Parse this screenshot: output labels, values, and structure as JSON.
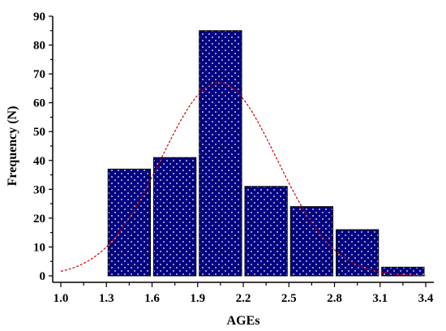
{
  "chart_data": {
    "type": "bar",
    "title": "",
    "xlabel": "AGEs",
    "ylabel": "Frequency (N)",
    "xlim": [
      1.0,
      3.4
    ],
    "ylim": [
      0,
      90
    ],
    "x_ticks": [
      "1.0",
      "1.3",
      "1.6",
      "1.9",
      "2.2",
      "2.5",
      "2.8",
      "3.1",
      "3.4"
    ],
    "x_tick_values": [
      1.0,
      1.3,
      1.6,
      1.9,
      2.2,
      2.5,
      2.8,
      3.1,
      3.4
    ],
    "y_ticks": [
      "0",
      "10",
      "20",
      "30",
      "40",
      "50",
      "60",
      "70",
      "80",
      "90"
    ],
    "y_tick_values": [
      0,
      10,
      20,
      30,
      40,
      50,
      60,
      70,
      80,
      90
    ],
    "bars": [
      {
        "start": 1.3,
        "end": 1.6,
        "value": 37
      },
      {
        "start": 1.6,
        "end": 1.9,
        "value": 41
      },
      {
        "start": 1.9,
        "end": 2.2,
        "value": 85
      },
      {
        "start": 2.2,
        "end": 2.5,
        "value": 31
      },
      {
        "start": 2.5,
        "end": 2.8,
        "value": 24
      },
      {
        "start": 2.8,
        "end": 3.1,
        "value": 16
      },
      {
        "start": 3.1,
        "end": 3.4,
        "value": 3
      }
    ],
    "normal_curve": {
      "mean": 2.04,
      "sd": 0.38,
      "peak": 67
    },
    "colors": {
      "bar": "#000080",
      "bar_dots": "#ffffff",
      "curve": "#d40000"
    },
    "grid": false
  }
}
